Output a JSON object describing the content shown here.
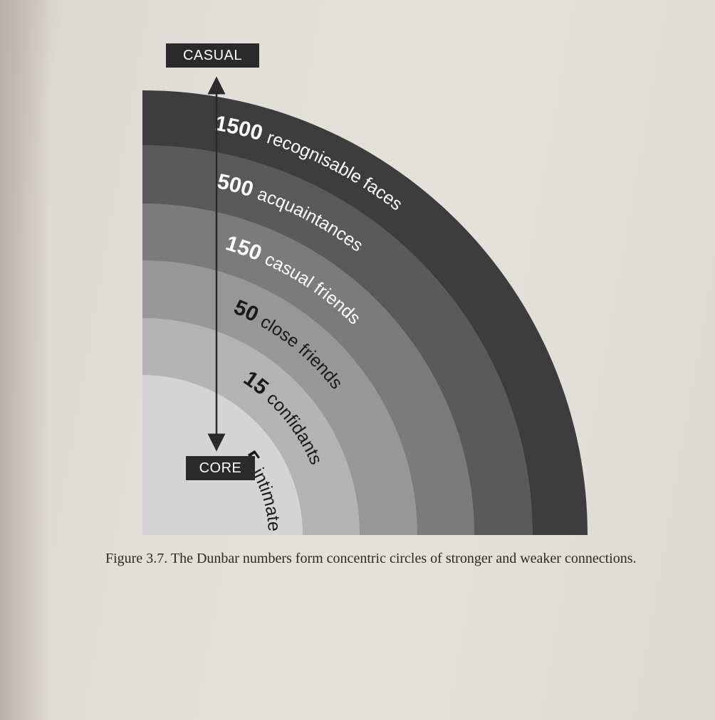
{
  "axis": {
    "top_label": "CASUAL",
    "bottom_label": "CORE"
  },
  "layers": [
    {
      "number": "1500",
      "label": "recognisable faces",
      "color": "#3d3d3d",
      "text_color": "#ffffff"
    },
    {
      "number": "500",
      "label": "acquaintances",
      "color": "#5a5a5a",
      "text_color": "#ffffff"
    },
    {
      "number": "150",
      "label": "casual friends",
      "color": "#7b7b7b",
      "text_color": "#ffffff"
    },
    {
      "number": "50",
      "label": "close friends",
      "color": "#979797",
      "text_color": "#1a1a1a"
    },
    {
      "number": "15",
      "label": "confidants",
      "color": "#b3b3b3",
      "text_color": "#1a1a1a"
    },
    {
      "number": "5",
      "label": "intimates",
      "color": "#d4d4d4",
      "text_color": "#1a1a1a"
    }
  ],
  "caption": "Figure 3.7. The Dunbar numbers form concentric circles of stronger and weaker connections."
}
